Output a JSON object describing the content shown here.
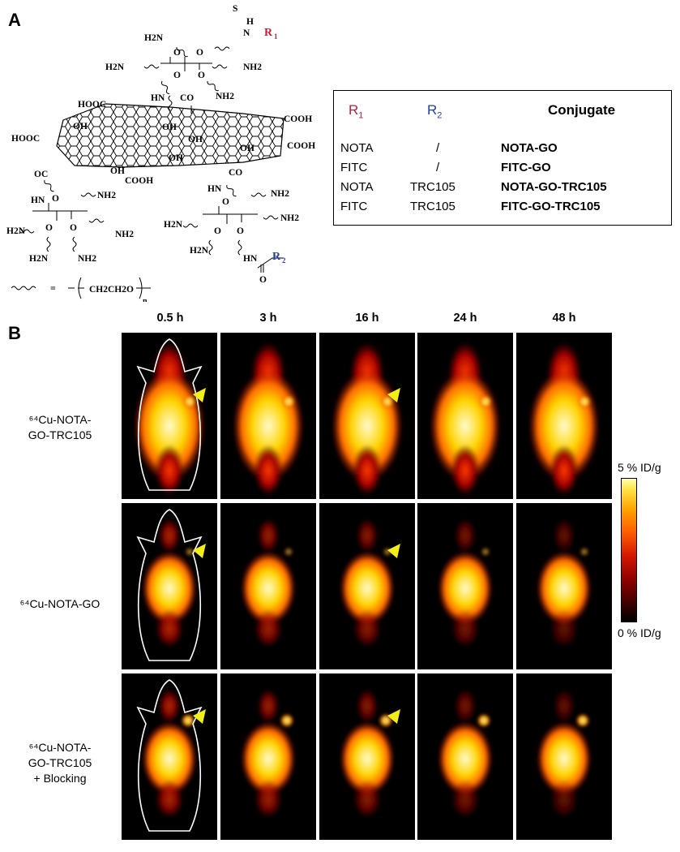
{
  "panel_a": {
    "letter": "A",
    "structure": {
      "labels": {
        "thio_s": "S",
        "thio_h": "H",
        "thio_n": "N",
        "r1": "R1",
        "r2": "R2",
        "o": "O",
        "nh2": "NH2",
        "h2n": "H2N",
        "hn": "HN",
        "co": "CO",
        "oc": "OC",
        "c": "C",
        "hooc": "HOOC",
        "cooh": "COOH",
        "oh": "OH",
        "peg_formula": "CH2CH2O",
        "peg_n": "n",
        "equals": "="
      }
    },
    "table": {
      "headers": {
        "r1": "R1",
        "r2": "R2",
        "conjugate": "Conjugate"
      },
      "rows": [
        {
          "r1": "NOTA",
          "r2": "/",
          "conjugate": "NOTA-GO"
        },
        {
          "r1": "FITC",
          "r2": "/",
          "conjugate": "FITC-GO"
        },
        {
          "r1": "NOTA",
          "r2": "TRC105",
          "conjugate": "NOTA-GO-TRC105"
        },
        {
          "r1": "FITC",
          "r2": "TRC105",
          "conjugate": "FITC-GO-TRC105"
        }
      ]
    },
    "colors": {
      "r1": "#c0203a",
      "r2": "#2440a0"
    }
  },
  "panel_b": {
    "letter": "B",
    "timepoints": [
      "0.5 h",
      "3 h",
      "16 h",
      "24 h",
      "48 h"
    ],
    "rows": [
      {
        "label_lines": [
          "64Cu-NOTA-",
          "GO-TRC105"
        ],
        "label_lines_display": [
          "⁶⁴Cu-NOTA-",
          "GO-TRC105"
        ]
      },
      {
        "label_lines": [
          "64Cu-NOTA-GO"
        ],
        "label_lines_display": [
          "⁶⁴Cu-NOTA-GO"
        ]
      },
      {
        "label_lines": [
          "64Cu-NOTA-",
          "GO-TRC105",
          "+ Blocking"
        ],
        "label_lines_display": [
          "⁶⁴Cu-NOTA-",
          "GO-TRC105",
          "+ Blocking"
        ]
      }
    ],
    "colorbar": {
      "max_label": "5 % ID/g",
      "min_label": "0 % ID/g"
    },
    "colors": {
      "arrowhead": "#f2ee1a",
      "outline": "#ffffff"
    }
  }
}
